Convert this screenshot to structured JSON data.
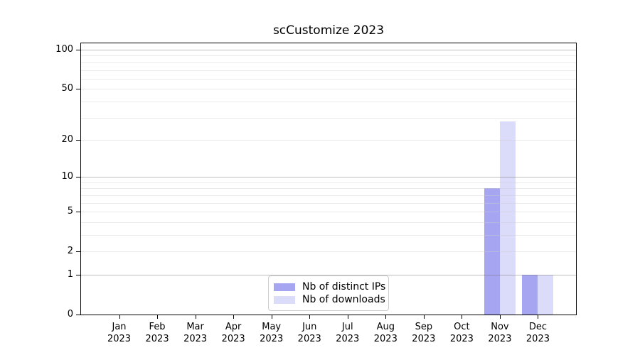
{
  "chart_data": {
    "type": "bar",
    "title": "scCustomize 2023",
    "year": "2023",
    "months": [
      "Jan",
      "Feb",
      "Mar",
      "Apr",
      "May",
      "Jun",
      "Jul",
      "Aug",
      "Sep",
      "Oct",
      "Nov",
      "Dec"
    ],
    "series": [
      {
        "name": "Nb of distinct IPs",
        "color": "#a5a5f2",
        "values": [
          0,
          0,
          0,
          0,
          0,
          0,
          0,
          0,
          0,
          0,
          8,
          1
        ]
      },
      {
        "name": "Nb of downloads",
        "color": "#dbdbfa",
        "values": [
          0,
          0,
          0,
          0,
          0,
          0,
          0,
          0,
          0,
          0,
          28,
          1
        ]
      }
    ],
    "y_ticks": [
      0,
      1,
      2,
      5,
      10,
      20,
      50,
      100
    ],
    "y_scale": "log1p",
    "ylim": [
      0,
      112
    ],
    "grid": {
      "major_ticks": [
        1,
        10,
        100
      ],
      "minor_ticks": [
        2,
        3,
        4,
        5,
        6,
        7,
        8,
        9,
        20,
        30,
        40,
        50,
        60,
        70,
        80,
        90
      ]
    },
    "legend_position": "lower center",
    "xlabel": "",
    "ylabel": ""
  }
}
